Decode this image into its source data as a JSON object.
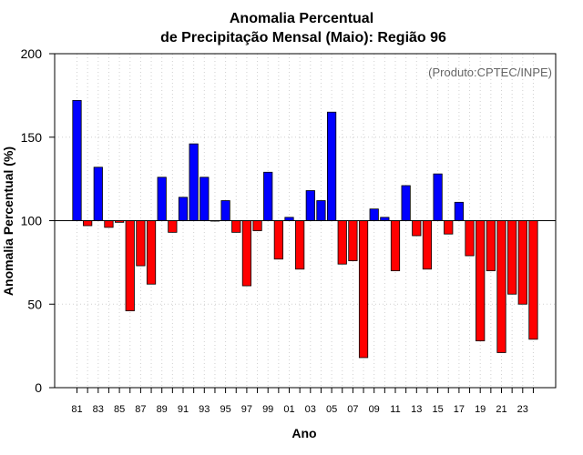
{
  "chart_data": {
    "type": "bar",
    "title_lines": [
      "Anomalia Percentual",
      "de Precipitação Mensal (Maio): Região 96"
    ],
    "xlabel": "Ano",
    "ylabel": "Anomalia Percentual (%)",
    "credit": "(Produto:CPTEC/INPE)",
    "baseline": 100,
    "ylim": [
      0,
      200
    ],
    "yticks": [
      0,
      50,
      100,
      150,
      200
    ],
    "grid": true,
    "colors": {
      "above": "#0000ff",
      "below": "#ff0000"
    },
    "categories": [
      "81",
      "82",
      "83",
      "84",
      "85",
      "86",
      "87",
      "88",
      "89",
      "90",
      "91",
      "92",
      "93",
      "94",
      "95",
      "96",
      "97",
      "98",
      "99",
      "00",
      "01",
      "02",
      "03",
      "04",
      "05",
      "06",
      "07",
      "08",
      "09",
      "10",
      "11",
      "12",
      "13",
      "14",
      "15",
      "16",
      "17",
      "18",
      "19",
      "20",
      "21",
      "22",
      "23",
      "24"
    ],
    "tick_labels": [
      "81",
      "83",
      "85",
      "87",
      "89",
      "91",
      "93",
      "95",
      "97",
      "99",
      "01",
      "03",
      "05",
      "07",
      "09",
      "11",
      "13",
      "15",
      "17",
      "19",
      "21",
      "23"
    ],
    "values": [
      172,
      97,
      132,
      96,
      99,
      46,
      73,
      62,
      126,
      93,
      114,
      146,
      126,
      100,
      112,
      93,
      61,
      94,
      129,
      77,
      102,
      71,
      118,
      112,
      165,
      74,
      76,
      18,
      107,
      102,
      70,
      121,
      91,
      71,
      128,
      92,
      111,
      79,
      28,
      70,
      21,
      56,
      50,
      29
    ]
  }
}
